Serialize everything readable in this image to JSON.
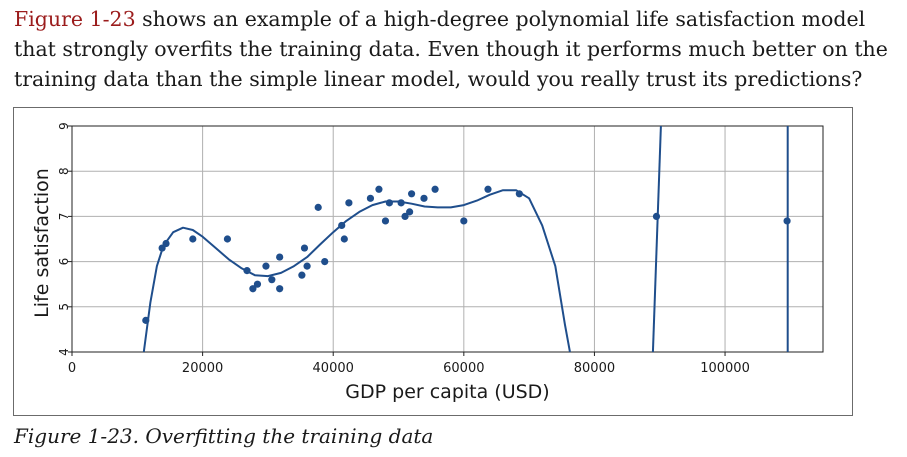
{
  "paragraph": {
    "ref": "Figure 1-23",
    "text": " shows an example of a high-degree polynomial life satisfaction model that strongly overfits the training data. Even though it performs much better on the training data than the simple linear model, would you really trust its predictions?"
  },
  "caption": "Figure 1-23. Overfitting the training data",
  "chart_data": {
    "type": "scatter",
    "xlabel": "GDP per capita (USD)",
    "ylabel": "Life satisfaction",
    "xlim": [
      0,
      115000
    ],
    "ylim": [
      4,
      9
    ],
    "xticks": [
      0,
      20000,
      40000,
      60000,
      80000,
      100000
    ],
    "yticks": [
      4,
      5,
      6,
      7,
      8,
      9
    ],
    "grid": true,
    "colors": {
      "points": "#1f4e8c",
      "curve": "#1f4e8c",
      "grid": "#b0b0b0"
    },
    "points": [
      [
        11300,
        4.7
      ],
      [
        13800,
        6.3
      ],
      [
        14400,
        6.4
      ],
      [
        18500,
        6.5
      ],
      [
        23800,
        6.5
      ],
      [
        26800,
        5.8
      ],
      [
        27700,
        5.4
      ],
      [
        28400,
        5.5
      ],
      [
        29700,
        5.9
      ],
      [
        30600,
        5.6
      ],
      [
        31800,
        6.1
      ],
      [
        31800,
        5.4
      ],
      [
        35200,
        5.7
      ],
      [
        35600,
        6.3
      ],
      [
        36000,
        5.9
      ],
      [
        37700,
        7.2
      ],
      [
        38700,
        6.0
      ],
      [
        41300,
        6.8
      ],
      [
        41700,
        6.5
      ],
      [
        42400,
        7.3
      ],
      [
        45700,
        7.4
      ],
      [
        47000,
        7.6
      ],
      [
        48000,
        6.9
      ],
      [
        48600,
        7.3
      ],
      [
        50400,
        7.3
      ],
      [
        51000,
        7.0
      ],
      [
        51700,
        7.1
      ],
      [
        52000,
        7.5
      ],
      [
        53900,
        7.4
      ],
      [
        55600,
        7.6
      ],
      [
        60000,
        6.9
      ],
      [
        63700,
        7.6
      ],
      [
        68500,
        7.5
      ],
      [
        89500,
        7.0
      ],
      [
        109500,
        6.9
      ]
    ],
    "curve": [
      [
        11000,
        4.0
      ],
      [
        12000,
        5.1
      ],
      [
        13000,
        5.9
      ],
      [
        14000,
        6.35
      ],
      [
        15500,
        6.65
      ],
      [
        17000,
        6.75
      ],
      [
        18500,
        6.7
      ],
      [
        20000,
        6.55
      ],
      [
        22000,
        6.3
      ],
      [
        24000,
        6.05
      ],
      [
        26000,
        5.85
      ],
      [
        28000,
        5.7
      ],
      [
        30000,
        5.68
      ],
      [
        32000,
        5.75
      ],
      [
        34000,
        5.9
      ],
      [
        36000,
        6.1
      ],
      [
        38000,
        6.38
      ],
      [
        40000,
        6.65
      ],
      [
        42000,
        6.9
      ],
      [
        44000,
        7.1
      ],
      [
        46000,
        7.25
      ],
      [
        48000,
        7.33
      ],
      [
        50000,
        7.33
      ],
      [
        52000,
        7.28
      ],
      [
        54000,
        7.22
      ],
      [
        56000,
        7.2
      ],
      [
        58000,
        7.2
      ],
      [
        60000,
        7.25
      ],
      [
        62000,
        7.35
      ],
      [
        64000,
        7.48
      ],
      [
        66000,
        7.58
      ],
      [
        68000,
        7.58
      ],
      [
        70000,
        7.4
      ],
      [
        72000,
        6.8
      ],
      [
        74000,
        5.9
      ],
      [
        75500,
        4.6
      ],
      [
        76500,
        3.8
      ]
    ],
    "curve2": [
      [
        88900,
        3.8
      ],
      [
        90300,
        9.5
      ]
    ],
    "curve3": [
      [
        109600,
        3.8
      ],
      [
        109600,
        9.5
      ]
    ]
  }
}
